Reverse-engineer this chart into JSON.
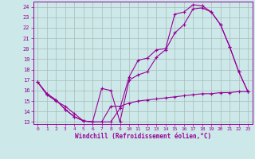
{
  "xlabel": "Windchill (Refroidissement éolien,°C)",
  "xlim": [
    -0.5,
    23.5
  ],
  "ylim": [
    12.8,
    24.5
  ],
  "xticks": [
    0,
    1,
    2,
    3,
    4,
    5,
    6,
    7,
    8,
    9,
    10,
    11,
    12,
    13,
    14,
    15,
    16,
    17,
    18,
    19,
    20,
    21,
    22,
    23
  ],
  "yticks": [
    13,
    14,
    15,
    16,
    17,
    18,
    19,
    20,
    21,
    22,
    23,
    24
  ],
  "bg_color": "#cce8e8",
  "line_color": "#990099",
  "grid_color": "#aabbbb",
  "line1_x": [
    0,
    1,
    2,
    3,
    4,
    5,
    6,
    7,
    8,
    9,
    10,
    11,
    12,
    13,
    14,
    15,
    16,
    17,
    18,
    19,
    20,
    21,
    22,
    23
  ],
  "line1_y": [
    16.8,
    15.6,
    15.0,
    14.5,
    13.8,
    13.1,
    13.0,
    13.0,
    13.0,
    14.3,
    17.3,
    18.9,
    19.1,
    19.9,
    20.0,
    23.3,
    23.5,
    24.2,
    24.1,
    23.5,
    22.3,
    20.2,
    17.8,
    15.9
  ],
  "line2_x": [
    0,
    1,
    2,
    3,
    4,
    5,
    6,
    7,
    8,
    9,
    10,
    11,
    12,
    13,
    14,
    15,
    16,
    17,
    18,
    19,
    20,
    21,
    22,
    23
  ],
  "line2_y": [
    16.8,
    15.7,
    15.1,
    14.2,
    13.5,
    13.1,
    13.0,
    16.2,
    16.0,
    13.0,
    17.0,
    17.5,
    17.8,
    19.2,
    19.9,
    21.5,
    22.3,
    23.8,
    23.9,
    23.5,
    22.3,
    20.2,
    17.8,
    15.9
  ],
  "line3_x": [
    0,
    1,
    2,
    3,
    4,
    5,
    6,
    7,
    8,
    9,
    10,
    11,
    12,
    13,
    14,
    15,
    16,
    17,
    18,
    19,
    20,
    21,
    22,
    23
  ],
  "line3_y": [
    16.8,
    15.7,
    15.1,
    14.2,
    13.5,
    13.1,
    13.0,
    13.0,
    14.5,
    14.5,
    14.8,
    15.0,
    15.1,
    15.2,
    15.3,
    15.4,
    15.5,
    15.6,
    15.7,
    15.7,
    15.8,
    15.8,
    15.9,
    15.9
  ]
}
